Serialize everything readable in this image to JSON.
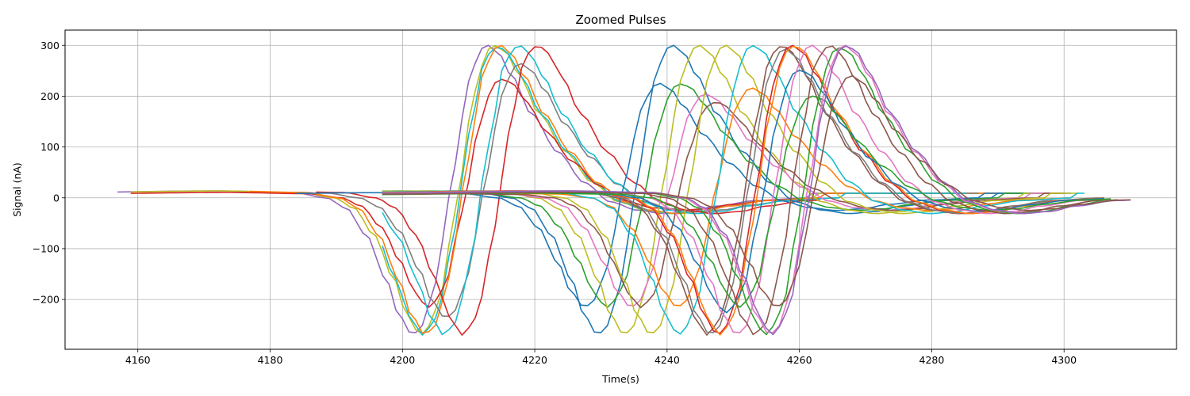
{
  "chart_data": {
    "type": "line",
    "title": "Zoomed Pulses",
    "xlabel": "Time(s)",
    "ylabel": "Signal (nA)",
    "xlim": [
      4149,
      4317
    ],
    "ylim": [
      -298,
      330
    ],
    "xticks": [
      4160,
      4180,
      4200,
      4220,
      4240,
      4260,
      4280,
      4300
    ],
    "yticks": [
      -200,
      -100,
      0,
      100,
      200,
      300
    ],
    "xtick_labels": [
      "4160",
      "4180",
      "4200",
      "4220",
      "4240",
      "4260",
      "4280",
      "4300"
    ],
    "ytick_labels": [
      "−200",
      "−100",
      "0",
      "100",
      "200",
      "300"
    ],
    "grid": true,
    "series": [
      {
        "color": "#9467bd",
        "t0": 4201.5,
        "amp": 1.0,
        "start": 4157,
        "end": 4293
      },
      {
        "color": "#bcbd22",
        "t0": 4202.7,
        "amp": 1.0,
        "start": 4159,
        "end": 4292
      },
      {
        "color": "#17becf",
        "t0": 4203.0,
        "amp": 0.98,
        "start": 4197,
        "end": 4284
      },
      {
        "color": "#d62728",
        "t0": 4203.8,
        "amp": 0.78,
        "start": 4159,
        "end": 4283
      },
      {
        "color": "#ff7f0e",
        "t0": 4203.4,
        "amp": 1.0,
        "start": 4177,
        "end": 4295
      },
      {
        "color": "#7f7f7f",
        "t0": 4206.5,
        "amp": 0.88,
        "start": 4187,
        "end": 4287
      },
      {
        "color": "#17becf",
        "t0": 4206.2,
        "amp": 1.0,
        "start": 4197,
        "end": 4285
      },
      {
        "color": "#d62728",
        "t0": 4209.0,
        "amp": 1.0,
        "start": 4187,
        "end": 4263
      },
      {
        "color": "#1f77b4",
        "t0": 4227.5,
        "amp": 0.75,
        "start": 4184,
        "end": 4301
      },
      {
        "color": "#1f77b4",
        "t0": 4229.5,
        "amp": 1.0,
        "start": 4197,
        "end": 4297
      },
      {
        "color": "#2ca02c",
        "t0": 4230.8,
        "amp": 0.75,
        "start": 4197,
        "end": 4298
      },
      {
        "color": "#bcbd22",
        "t0": 4233.5,
        "amp": 1.0,
        "start": 4197,
        "end": 4300
      },
      {
        "color": "#e377c2",
        "t0": 4234.5,
        "amp": 0.68,
        "start": 4197,
        "end": 4300
      },
      {
        "color": "#8c564b",
        "t0": 4236.0,
        "amp": 0.63,
        "start": 4197,
        "end": 4300
      },
      {
        "color": "#bcbd22",
        "t0": 4237.5,
        "amp": 1.0,
        "start": 4197,
        "end": 4302
      },
      {
        "color": "#ff7f0e",
        "t0": 4241.5,
        "amp": 0.72,
        "start": 4197,
        "end": 4302
      },
      {
        "color": "#17becf",
        "t0": 4241.7,
        "amp": 1.0,
        "start": 4197,
        "end": 4303
      },
      {
        "color": "#8c564b",
        "t0": 4246.0,
        "amp": 1.0,
        "start": 4197,
        "end": 4305
      },
      {
        "color": "#7f7f7f",
        "t0": 4246.5,
        "amp": 0.92,
        "start": 4197,
        "end": 4306
      },
      {
        "color": "#d62728",
        "t0": 4247.6,
        "amp": 1.0,
        "start": 4197,
        "end": 4306
      },
      {
        "color": "#ff7f0e",
        "t0": 4247.9,
        "amp": 1.0,
        "start": 4197,
        "end": 4306
      },
      {
        "color": "#1f77b4",
        "t0": 4248.8,
        "amp": 0.84,
        "start": 4197,
        "end": 4306
      },
      {
        "color": "#e377c2",
        "t0": 4250.5,
        "amp": 1.0,
        "start": 4197,
        "end": 4307
      },
      {
        "color": "#2ca02c",
        "t0": 4250.8,
        "amp": 0.67,
        "start": 4197,
        "end": 4307
      },
      {
        "color": "#8c564b",
        "t0": 4253.2,
        "amp": 1.0,
        "start": 4197,
        "end": 4308
      },
      {
        "color": "#2ca02c",
        "t0": 4254.8,
        "amp": 0.96,
        "start": 4197,
        "end": 4308
      },
      {
        "color": "#e377c2",
        "t0": 4255.5,
        "amp": 1.0,
        "start": 4197,
        "end": 4309
      },
      {
        "color": "#9467bd",
        "t0": 4255.8,
        "amp": 1.0,
        "start": 4197,
        "end": 4310
      },
      {
        "color": "#8c564b",
        "t0": 4256.5,
        "amp": 0.8,
        "start": 4197,
        "end": 4310
      }
    ]
  }
}
